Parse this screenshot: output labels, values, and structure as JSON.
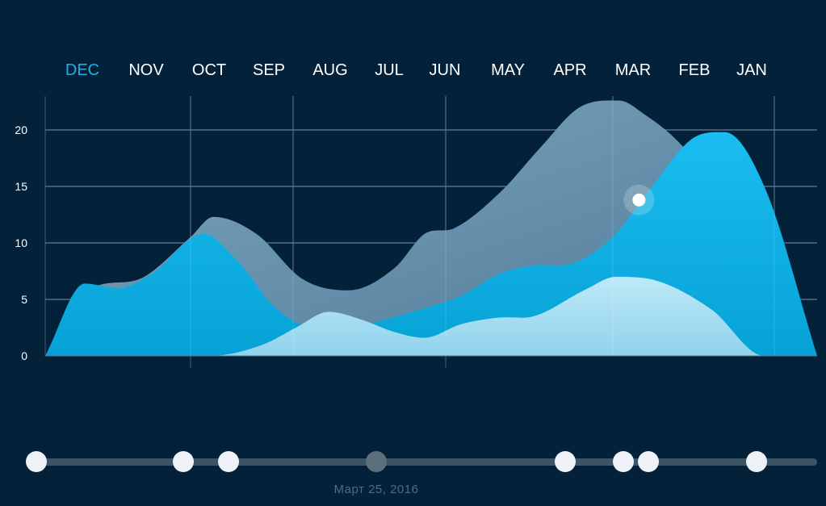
{
  "colors": {
    "background": "#03223a",
    "active_tab": "#1ab0e8",
    "series_blue": "#08a6db",
    "series_gray": "#5d86a3",
    "series_light": "#a6def2",
    "timeline_track": "#3b5466",
    "timeline_knob": "#eef2f7",
    "timeline_knob_active": "#5b6e7b"
  },
  "month_tabs": [
    "DEC",
    "NOV",
    "OCT",
    "SEP",
    "AUG",
    "JUL",
    "JUN",
    "MAY",
    "APR",
    "MAR",
    "FEB",
    "JAN"
  ],
  "active_tab_index": 0,
  "timeline": {
    "date_label": "Март 25, 2016",
    "knob_count": 8,
    "active_knob_index": 3
  },
  "chart_data": {
    "type": "area",
    "categories": [
      "DEC",
      "NOV",
      "OCT",
      "SEP",
      "AUG",
      "JUL",
      "JUN",
      "MAY",
      "APR",
      "MAR",
      "FEB",
      "JAN"
    ],
    "ylim": [
      0,
      23
    ],
    "yticks": [
      0,
      5,
      10,
      15,
      20
    ],
    "grid": true,
    "legend": "none",
    "series": [
      {
        "color": "#5d86a3",
        "x": [
          0,
          0.6,
          1.5,
          2.2,
          2.55,
          3.2,
          3.9,
          4.6,
          5.3,
          5.75,
          6.2,
          6.9,
          7.5,
          8.1,
          8.7,
          9.1,
          9.5,
          9.9,
          10.3,
          11,
          11.7
        ],
        "values": [
          0,
          5.5,
          7,
          10.5,
          12.3,
          10.8,
          6.8,
          5.8,
          7.8,
          10.8,
          11.3,
          14.5,
          18.4,
          22,
          22.6,
          21.3,
          19.5,
          17,
          14,
          7,
          0
        ]
      },
      {
        "color": "#08a6db",
        "x": [
          0,
          0.6,
          1.1,
          1.6,
          2.4,
          2.9,
          3.5,
          4.1,
          4.6,
          5.2,
          5.8,
          6.3,
          6.9,
          7.4,
          8.0,
          8.6,
          9.2,
          9.8,
          10.3,
          10.9,
          11.7
        ],
        "values": [
          0,
          6.4,
          6.0,
          7.2,
          10.8,
          8.5,
          4.2,
          2.5,
          2.5,
          3.3,
          4.3,
          5.3,
          7.3,
          8.0,
          8.2,
          10.5,
          15,
          19.2,
          19.8,
          15,
          0
        ]
      },
      {
        "color": "#a6def2",
        "x": [
          0,
          2.5,
          3.3,
          3.8,
          4.3,
          4.8,
          5.3,
          5.75,
          6.3,
          6.9,
          7.4,
          8.2,
          8.65,
          9.3,
          10.1,
          10.9,
          11.7
        ],
        "values": [
          0,
          0,
          1,
          2.5,
          3.9,
          3.2,
          2.1,
          1.6,
          2.8,
          3.4,
          3.5,
          5.9,
          7.0,
          6.6,
          4.1,
          0,
          0
        ]
      }
    ],
    "highlight_point": {
      "x": 9.0,
      "y": 13.8
    }
  }
}
